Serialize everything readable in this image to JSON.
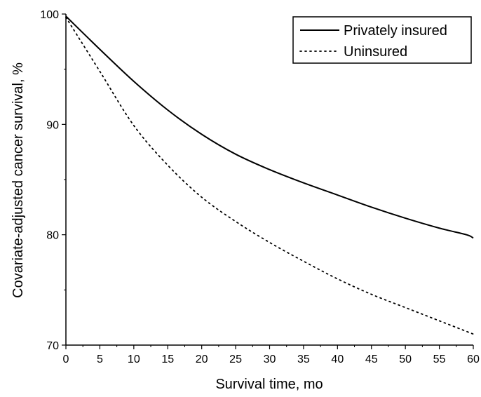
{
  "chart_data": {
    "type": "line",
    "xlabel": "Survival time, mo",
    "ylabel": "Covariate-adjusted cancer survival, %",
    "xlim": [
      0,
      60
    ],
    "ylim": [
      70,
      100
    ],
    "xticks": [
      "0",
      "5",
      "10",
      "15",
      "20",
      "25",
      "30",
      "35",
      "40",
      "45",
      "50",
      "55",
      "60"
    ],
    "yticks": [
      "70",
      "80",
      "90",
      "100"
    ],
    "grid": false,
    "legend_position": "top-right",
    "series": [
      {
        "name": "Privately insured",
        "style": "solid",
        "color": "#000000",
        "x": [
          0,
          5,
          10,
          15,
          20,
          25,
          30,
          35,
          40,
          45,
          50,
          55,
          59,
          60
        ],
        "y": [
          99.8,
          96.8,
          93.9,
          91.3,
          89.1,
          87.3,
          85.9,
          84.7,
          83.6,
          82.5,
          81.5,
          80.6,
          80.0,
          79.7
        ]
      },
      {
        "name": "Uninsured",
        "style": "dotted",
        "color": "#000000",
        "x": [
          0,
          5,
          10,
          15,
          20,
          25,
          30,
          35,
          40,
          45,
          50,
          55,
          60
        ],
        "y": [
          99.7,
          94.8,
          89.9,
          86.3,
          83.4,
          81.2,
          79.3,
          77.6,
          76.0,
          74.6,
          73.4,
          72.2,
          71.0
        ]
      }
    ]
  }
}
